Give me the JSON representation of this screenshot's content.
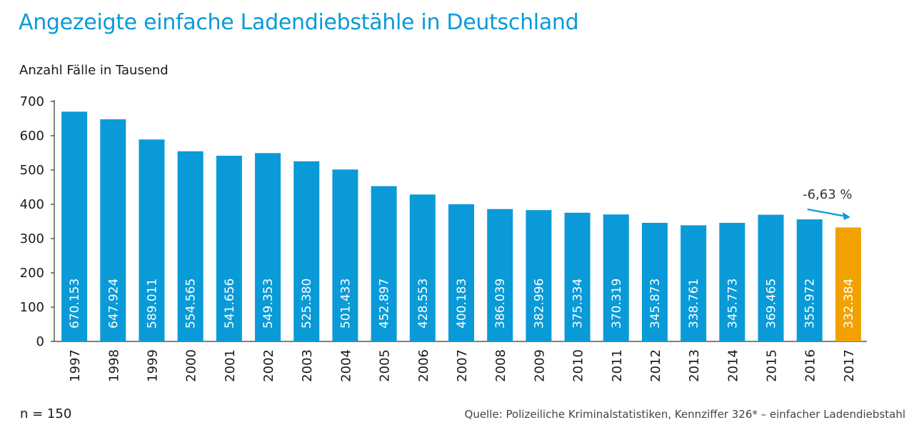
{
  "title": "Angezeigte einfache Ladendiebstähle in Deutschland",
  "unit_label": "Anzahl Fälle in Tausend",
  "sample_note": "n = 150",
  "source": "Quelle: Polizeiliche Kriminalstatistiken, Kennziffer 326* – einfacher Ladendiebstahl",
  "colors": {
    "bar": "#0a9ad8",
    "highlight_bar": "#f2a200",
    "title": "#0a9ad8",
    "arrow": "#0a9ad8",
    "axis": "#333333"
  },
  "chart_data": {
    "type": "bar",
    "categories": [
      "1997",
      "1998",
      "1999",
      "2000",
      "2001",
      "2002",
      "2003",
      "2004",
      "2005",
      "2006",
      "2007",
      "2008",
      "2009",
      "2010",
      "2011",
      "2012",
      "2013",
      "2014",
      "2015",
      "2016",
      "2017"
    ],
    "values": [
      670.153,
      647.924,
      589.011,
      554.565,
      541.656,
      549.353,
      525.38,
      501.433,
      452.897,
      428.553,
      400.183,
      386.039,
      382.996,
      375.334,
      370.319,
      345.873,
      338.761,
      345.773,
      369.465,
      355.972,
      332.384
    ],
    "value_labels": [
      "670.153",
      "647.924",
      "589.011",
      "554.565",
      "541.656",
      "549.353",
      "525.380",
      "501.433",
      "452.897",
      "428.553",
      "400.183",
      "386.039",
      "382.996",
      "375.334",
      "370.319",
      "345.873",
      "338.761",
      "345.773",
      "369.465",
      "355.972",
      "332.384"
    ],
    "highlight_category": "2017",
    "ylim": [
      0,
      700
    ],
    "yticks": [
      0,
      100,
      200,
      300,
      400,
      500,
      600,
      700
    ],
    "ylabel": "Anzahl Fälle in Tausend",
    "xlabel": "",
    "grid": false,
    "annotation": {
      "text": "-6,63 %",
      "from": "2016",
      "to": "2017"
    }
  }
}
